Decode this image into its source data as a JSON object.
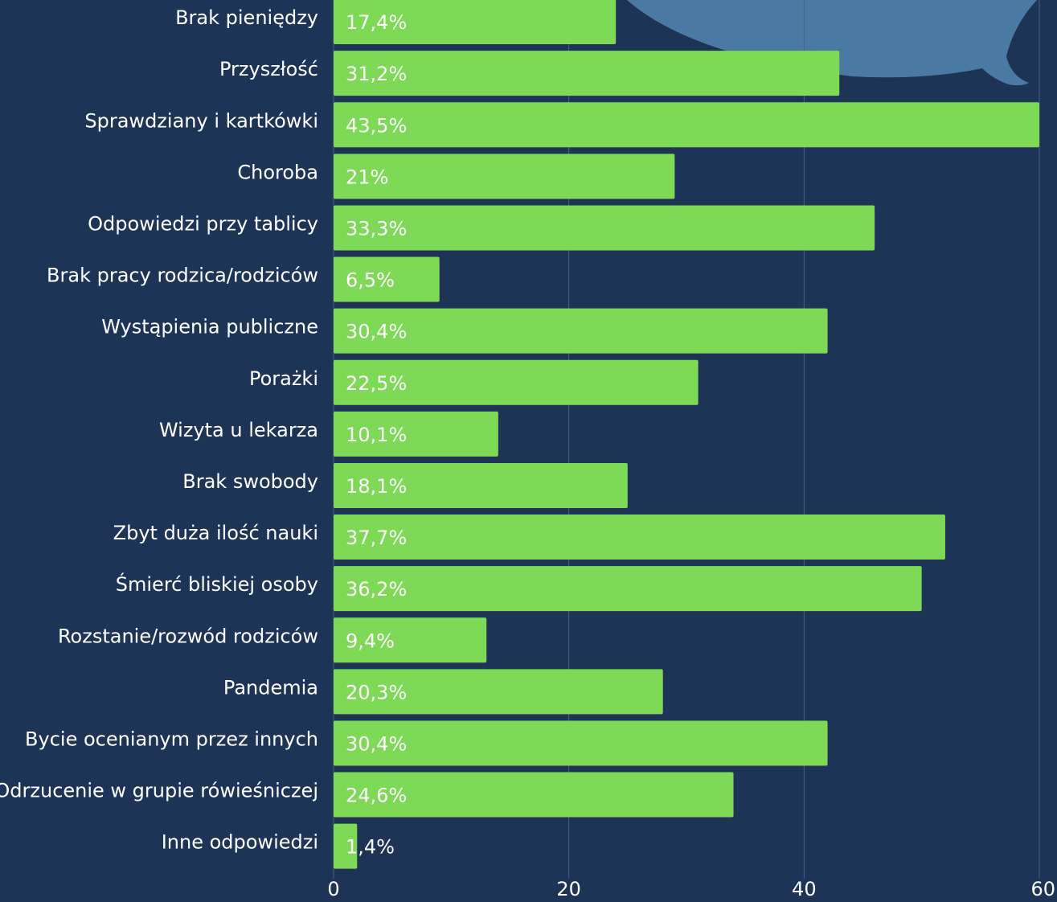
{
  "chart_data": {
    "type": "bar",
    "orientation": "horizontal",
    "categories": [
      "Brak pieniędzy",
      "Przyszłość",
      "Sprawdziany i kartkówki",
      "Choroba",
      "Odpowiedzi przy tablicy",
      "Brak pracy rodzica/rodziców",
      "Wystąpienia publiczne",
      "Porażki",
      "Wizyta u lekarza",
      "Brak swobody",
      "Zbyt duża ilość nauki",
      "Śmierć bliskiej osoby",
      "Rozstanie/rozwód rodziców",
      "Pandemia",
      "Bycie ocenianym przez innych",
      "Odrzucenie w grupie rówieśniczej",
      "Inne odpowiedzi"
    ],
    "values": [
      24,
      43,
      60,
      29,
      46,
      9,
      42,
      31,
      14,
      25,
      52,
      50,
      13,
      28,
      42,
      34,
      2
    ],
    "value_labels": [
      "17,4%",
      "31,2%",
      "43,5%",
      "21%",
      "33,3%",
      "6,5%",
      "30,4%",
      "22,5%",
      "10,1%",
      "18,1%",
      "37,7%",
      "36,2%",
      "9,4%",
      "20,3%",
      "30,4%",
      "24,6%",
      "1,4%"
    ],
    "color": "#7ed957",
    "xlim": [
      0,
      60
    ],
    "xticks": [
      0,
      20,
      40,
      60
    ],
    "grid": true
  }
}
